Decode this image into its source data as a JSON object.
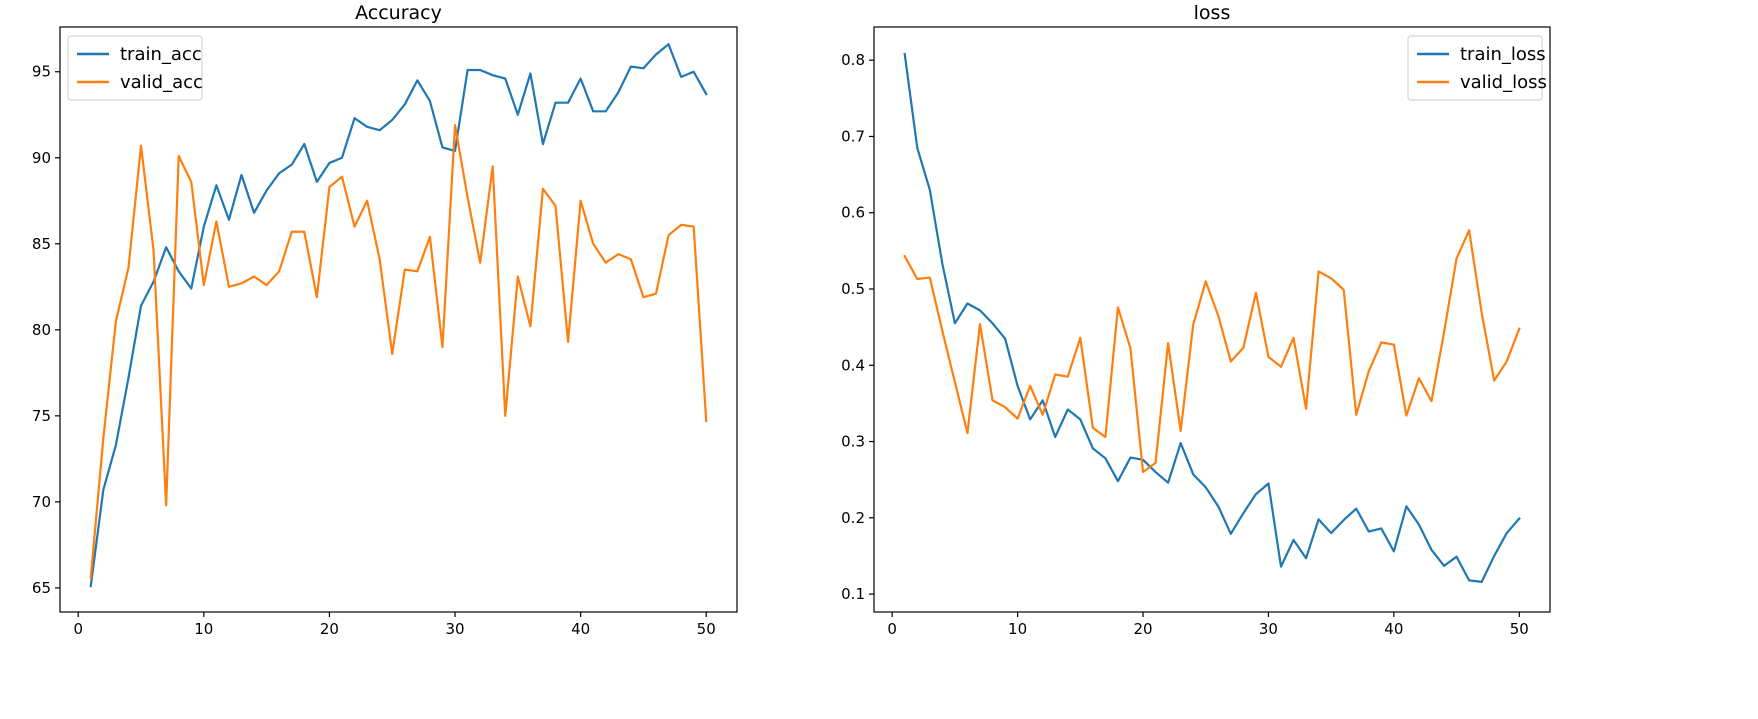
{
  "chart_data": [
    {
      "type": "line",
      "title": "Accuracy",
      "xlabel": "",
      "ylabel": "",
      "xlim": [
        -1.45,
        52.45
      ],
      "ylim": [
        63.6,
        97.6
      ],
      "xticks": [
        0,
        10,
        20,
        30,
        40,
        50
      ],
      "yticks": [
        65,
        70,
        75,
        80,
        85,
        90,
        95
      ],
      "grid": false,
      "legend_position": "top-left",
      "x": [
        1,
        2,
        3,
        4,
        5,
        6,
        7,
        8,
        9,
        10,
        11,
        12,
        13,
        14,
        15,
        16,
        17,
        18,
        19,
        20,
        21,
        22,
        23,
        24,
        25,
        26,
        27,
        28,
        29,
        30,
        31,
        32,
        33,
        34,
        35,
        36,
        37,
        38,
        39,
        40,
        41,
        42,
        43,
        44,
        45,
        46,
        47,
        48,
        49,
        50
      ],
      "series": [
        {
          "name": "train_acc",
          "color": "#1f77b4",
          "values": [
            65.1,
            70.7,
            73.3,
            77.2,
            81.4,
            82.8,
            84.8,
            83.4,
            82.4,
            86.0,
            88.4,
            86.4,
            89.0,
            86.8,
            88.1,
            89.1,
            89.6,
            90.8,
            88.6,
            89.7,
            90.0,
            92.3,
            91.8,
            91.6,
            92.2,
            93.1,
            94.5,
            93.3,
            90.6,
            90.4,
            95.1,
            95.1,
            94.8,
            94.6,
            92.5,
            94.9,
            90.8,
            93.2,
            93.2,
            94.6,
            92.7,
            92.7,
            93.8,
            95.3,
            95.2,
            96.0,
            96.6,
            94.7,
            95.0,
            93.7
          ]
        },
        {
          "name": "valid_acc",
          "color": "#ff7f0e",
          "values": [
            65.6,
            73.7,
            80.5,
            83.6,
            90.7,
            84.6,
            69.8,
            90.1,
            88.6,
            82.6,
            86.3,
            82.5,
            82.7,
            83.1,
            82.6,
            83.4,
            85.7,
            85.7,
            81.9,
            88.3,
            88.9,
            86.0,
            87.5,
            84.1,
            78.6,
            83.5,
            83.4,
            85.4,
            79.0,
            91.9,
            87.7,
            83.9,
            89.5,
            75.0,
            83.1,
            80.2,
            88.2,
            87.2,
            79.3,
            87.5,
            85.0,
            83.9,
            84.4,
            84.1,
            81.9,
            82.1,
            85.5,
            86.1,
            86.0,
            74.7
          ]
        }
      ]
    },
    {
      "type": "line",
      "title": "loss",
      "xlabel": "",
      "ylabel": "",
      "xlim": [
        -1.45,
        52.45
      ],
      "ylim": [
        0.0765,
        0.8435
      ],
      "xticks": [
        0,
        10,
        20,
        30,
        40,
        50
      ],
      "yticks": [
        0.1,
        0.2,
        0.3,
        0.4,
        0.5,
        0.6,
        0.7,
        0.8
      ],
      "grid": false,
      "legend_position": "top-right",
      "x": [
        1,
        2,
        3,
        4,
        5,
        6,
        7,
        8,
        9,
        10,
        11,
        12,
        13,
        14,
        15,
        16,
        17,
        18,
        19,
        20,
        21,
        22,
        23,
        24,
        25,
        26,
        27,
        28,
        29,
        30,
        31,
        32,
        33,
        34,
        35,
        36,
        37,
        38,
        39,
        40,
        41,
        42,
        43,
        44,
        45,
        46,
        47,
        48,
        49,
        50
      ],
      "series": [
        {
          "name": "train_loss",
          "color": "#1f77b4",
          "values": [
            0.808,
            0.685,
            0.63,
            0.533,
            0.455,
            0.481,
            0.472,
            0.455,
            0.435,
            0.373,
            0.329,
            0.354,
            0.306,
            0.342,
            0.329,
            0.291,
            0.278,
            0.248,
            0.279,
            0.276,
            0.26,
            0.246,
            0.298,
            0.257,
            0.24,
            0.215,
            0.179,
            0.206,
            0.231,
            0.245,
            0.136,
            0.171,
            0.147,
            0.198,
            0.18,
            0.197,
            0.212,
            0.182,
            0.186,
            0.156,
            0.215,
            0.191,
            0.158,
            0.137,
            0.149,
            0.118,
            0.116,
            0.15,
            0.18,
            0.199
          ]
        },
        {
          "name": "valid_loss",
          "color": "#ff7f0e",
          "values": [
            0.543,
            0.513,
            0.515,
            0.445,
            0.378,
            0.311,
            0.454,
            0.354,
            0.345,
            0.33,
            0.373,
            0.335,
            0.388,
            0.385,
            0.436,
            0.318,
            0.306,
            0.476,
            0.422,
            0.26,
            0.272,
            0.429,
            0.314,
            0.453,
            0.51,
            0.465,
            0.405,
            0.423,
            0.495,
            0.411,
            0.398,
            0.436,
            0.343,
            0.523,
            0.514,
            0.499,
            0.335,
            0.392,
            0.43,
            0.427,
            0.334,
            0.383,
            0.353,
            0.443,
            0.54,
            0.577,
            0.469,
            0.38,
            0.405,
            0.448
          ]
        }
      ]
    }
  ]
}
